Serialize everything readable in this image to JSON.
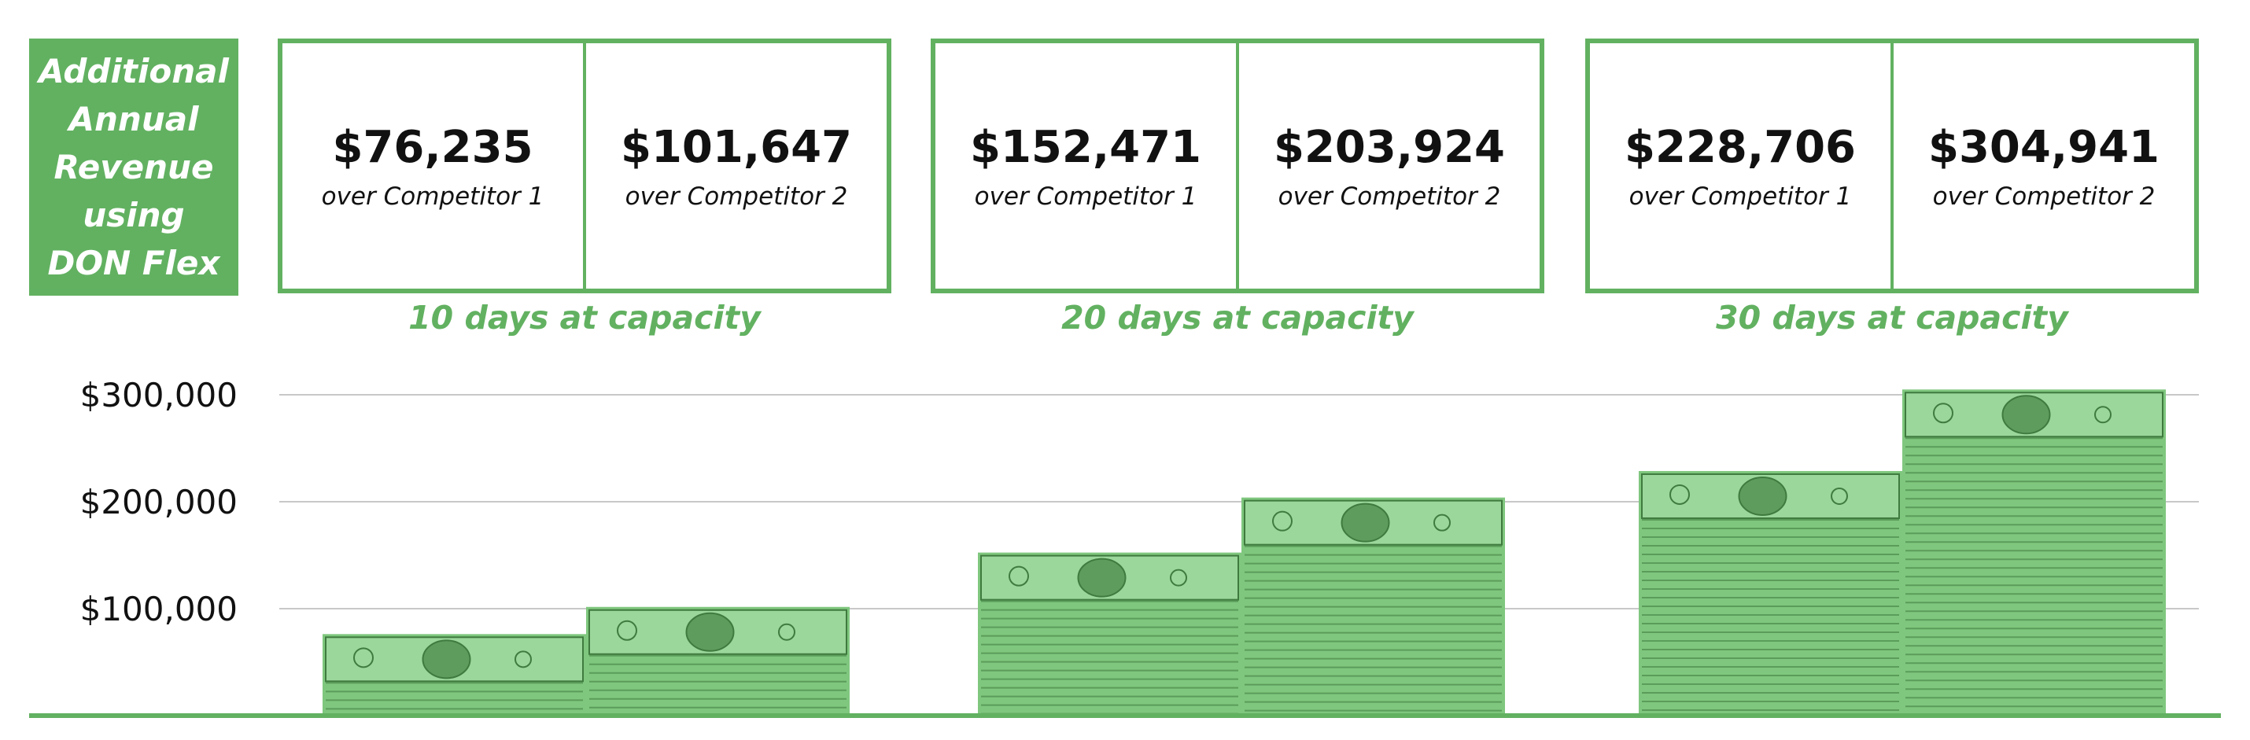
{
  "badge": {
    "text": "Additional\nAnnual\nRevenue\nusing\nDON Flex"
  },
  "panels": [
    {
      "caption": "10 days at capacity",
      "cells": [
        {
          "amount": "$76,235",
          "label": "over Competitor 1"
        },
        {
          "amount": "$101,647",
          "label": "over Competitor 2"
        }
      ]
    },
    {
      "caption": "20 days at capacity",
      "cells": [
        {
          "amount": "$152,471",
          "label": "over Competitor 1"
        },
        {
          "amount": "$203,924",
          "label": "over Competitor 2"
        }
      ]
    },
    {
      "caption": "30 days at capacity",
      "cells": [
        {
          "amount": "$228,706",
          "label": "over Competitor 1"
        },
        {
          "amount": "$304,941",
          "label": "over Competitor 2"
        }
      ]
    }
  ],
  "colors": {
    "accent": "#62b161",
    "bill": "#7fc77e",
    "bill_dark": "#3f7a3e",
    "grid": "#c8c8c8"
  },
  "chart_data": {
    "type": "bar",
    "categories": [
      "10 days at capacity",
      "20 days at capacity",
      "30 days at capacity"
    ],
    "series": [
      {
        "name": "over Competitor 1",
        "values": [
          76235,
          152471,
          228706
        ]
      },
      {
        "name": "over Competitor 2",
        "values": [
          101647,
          203924,
          304941
        ]
      }
    ],
    "yticks": [
      100000,
      200000,
      300000
    ],
    "ytick_labels": [
      "$100,000",
      "$200,000",
      "$300,000"
    ],
    "ylim": [
      0,
      300000
    ],
    "grid": true,
    "bar_style": "stacked-dollar-bills"
  }
}
